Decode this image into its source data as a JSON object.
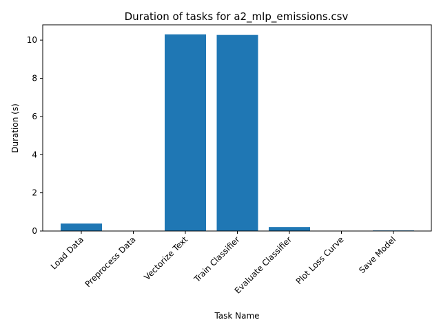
{
  "chart_data": {
    "type": "bar",
    "title": "Duration of tasks for a2_mlp_emissions.csv",
    "xlabel": "Task Name",
    "ylabel": "Duration (s)",
    "categories": [
      "Load Data",
      "Preprocess Data",
      "Vectorize Text",
      "Train Classifier",
      "Evaluate Classifier",
      "Plot Loss Curve",
      "Save Model"
    ],
    "values": [
      0.39,
      0.0,
      10.3,
      10.27,
      0.21,
      0.0,
      0.03
    ],
    "ylim": [
      0,
      10.8
    ],
    "yticks": [
      0,
      2,
      4,
      6,
      8,
      10
    ],
    "bar_color": "#1f77b4",
    "grid": false,
    "legend": "none"
  }
}
